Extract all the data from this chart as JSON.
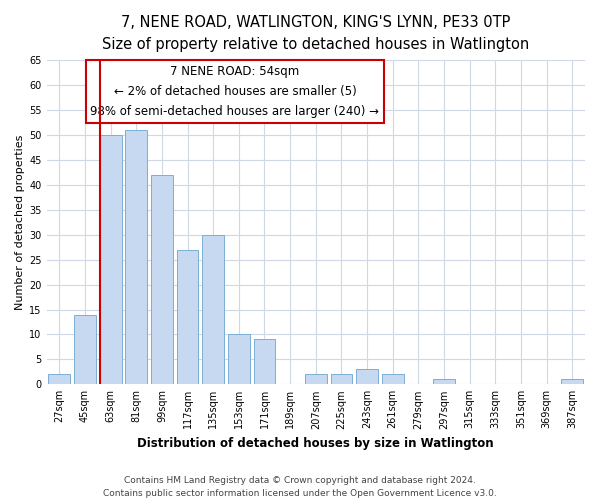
{
  "title": "7, NENE ROAD, WATLINGTON, KING'S LYNN, PE33 0TP",
  "subtitle": "Size of property relative to detached houses in Watlington",
  "xlabel": "Distribution of detached houses by size in Watlington",
  "ylabel": "Number of detached properties",
  "categories": [
    "27sqm",
    "45sqm",
    "63sqm",
    "81sqm",
    "99sqm",
    "117sqm",
    "135sqm",
    "153sqm",
    "171sqm",
    "189sqm",
    "207sqm",
    "225sqm",
    "243sqm",
    "261sqm",
    "279sqm",
    "297sqm",
    "315sqm",
    "333sqm",
    "351sqm",
    "369sqm",
    "387sqm"
  ],
  "values": [
    2,
    14,
    50,
    51,
    42,
    27,
    30,
    10,
    9,
    0,
    2,
    2,
    3,
    2,
    0,
    1,
    0,
    0,
    0,
    0,
    1
  ],
  "bar_color": "#c6d9f0",
  "bar_edge_color": "#7bafd4",
  "highlight_color": "#cc0000",
  "annotation_title": "7 NENE ROAD: 54sqm",
  "annotation_line1": "← 2% of detached houses are smaller (5)",
  "annotation_line2": "98% of semi-detached houses are larger (240) →",
  "annotation_box_color": "#ffffff",
  "annotation_box_edge": "#cc0000",
  "ylim": [
    0,
    65
  ],
  "yticks": [
    0,
    5,
    10,
    15,
    20,
    25,
    30,
    35,
    40,
    45,
    50,
    55,
    60,
    65
  ],
  "footer_line1": "Contains HM Land Registry data © Crown copyright and database right 2024.",
  "footer_line2": "Contains public sector information licensed under the Open Government Licence v3.0.",
  "bg_color": "#ffffff",
  "plot_bg_color": "#ffffff",
  "grid_color": "#d0d8e8",
  "title_fontsize": 10.5,
  "xlabel_fontsize": 8.5,
  "ylabel_fontsize": 8,
  "tick_fontsize": 7,
  "footer_fontsize": 6.5,
  "annotation_fontsize": 8.5
}
